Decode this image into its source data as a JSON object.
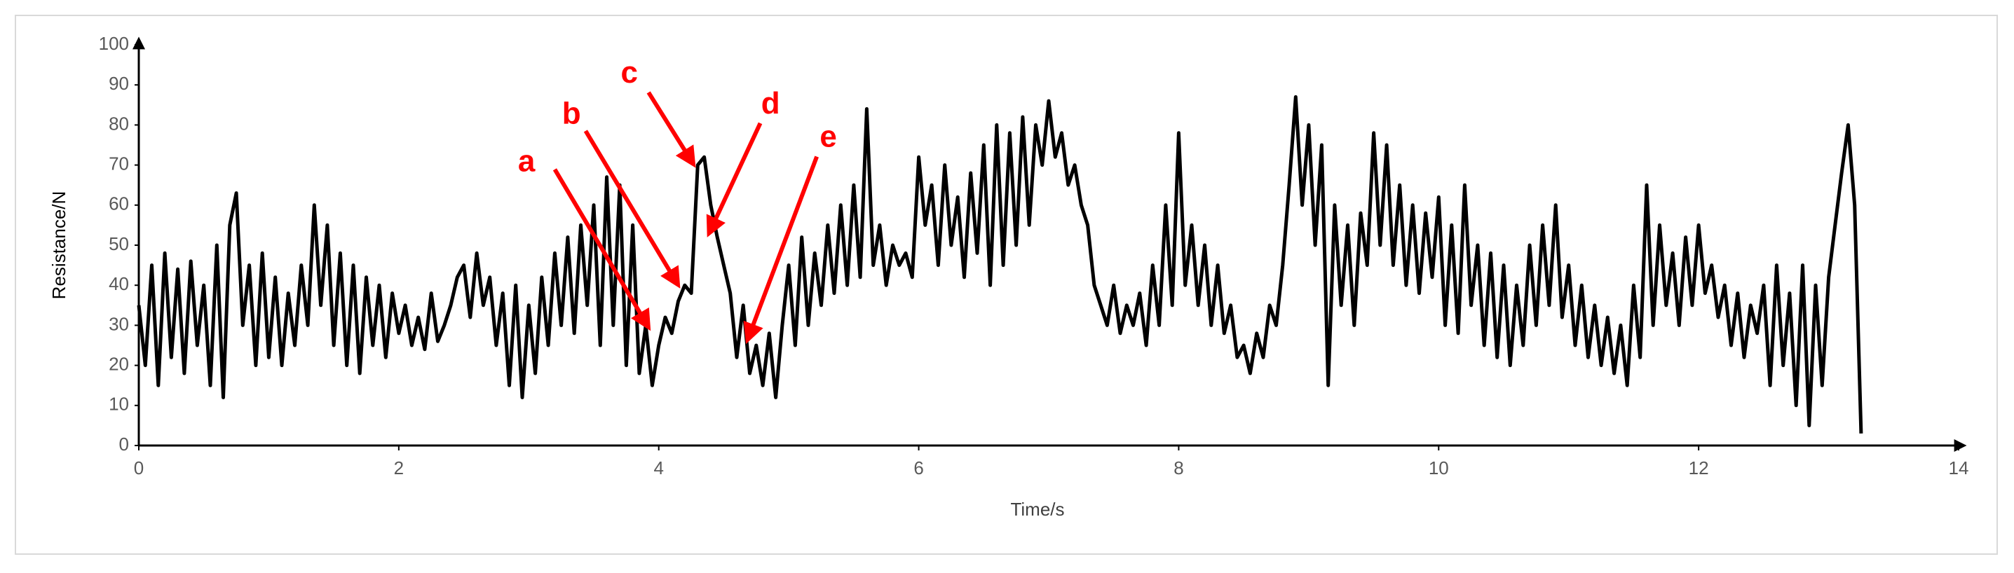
{
  "chart_data": {
    "type": "line",
    "x_label": "Time/s",
    "y_label": "Resistance/N",
    "xlim": [
      0,
      14
    ],
    "xticks": [
      0,
      2,
      4,
      6,
      8,
      10,
      12,
      14
    ],
    "ylim": [
      0,
      100
    ],
    "yticks": [
      0,
      10,
      20,
      30,
      40,
      50,
      60,
      70,
      80,
      90,
      100
    ],
    "grid": false,
    "annotations": [
      {
        "text": "a"
      },
      {
        "text": "b"
      },
      {
        "text": "c"
      },
      {
        "text": "d"
      },
      {
        "text": "e"
      }
    ],
    "annotation_color": "#ff0000",
    "x": [
      0,
      0.05,
      0.1,
      0.15,
      0.2,
      0.25,
      0.3,
      0.35,
      0.4,
      0.45,
      0.5,
      0.55,
      0.6,
      0.65,
      0.7,
      0.75,
      0.8,
      0.85,
      0.9,
      0.95,
      1,
      1.05,
      1.1,
      1.15,
      1.2,
      1.25,
      1.3,
      1.35,
      1.4,
      1.45,
      1.5,
      1.55,
      1.6,
      1.65,
      1.7,
      1.75,
      1.8,
      1.85,
      1.9,
      1.95,
      2,
      2.05,
      2.1,
      2.15,
      2.2,
      2.25,
      2.3,
      2.35,
      2.4,
      2.45,
      2.5,
      2.55,
      2.6,
      2.65,
      2.7,
      2.75,
      2.8,
      2.85,
      2.9,
      2.95,
      3,
      3.05,
      3.1,
      3.15,
      3.2,
      3.25,
      3.3,
      3.35,
      3.4,
      3.45,
      3.5,
      3.55,
      3.6,
      3.65,
      3.7,
      3.75,
      3.8,
      3.85,
      3.9,
      3.95,
      4,
      4.05,
      4.1,
      4.15,
      4.2,
      4.25,
      4.3,
      4.35,
      4.4,
      4.45,
      4.5,
      4.55,
      4.6,
      4.65,
      4.7,
      4.75,
      4.8,
      4.85,
      4.9,
      4.95,
      5,
      5.05,
      5.1,
      5.15,
      5.2,
      5.25,
      5.3,
      5.35,
      5.4,
      5.45,
      5.5,
      5.55,
      5.6,
      5.65,
      5.7,
      5.75,
      5.8,
      5.85,
      5.9,
      5.95,
      6,
      6.05,
      6.1,
      6.15,
      6.2,
      6.25,
      6.3,
      6.35,
      6.4,
      6.45,
      6.5,
      6.55,
      6.6,
      6.65,
      6.7,
      6.75,
      6.8,
      6.85,
      6.9,
      6.95,
      7,
      7.05,
      7.1,
      7.15,
      7.2,
      7.25,
      7.3,
      7.35,
      7.4,
      7.45,
      7.5,
      7.55,
      7.6,
      7.65,
      7.7,
      7.75,
      7.8,
      7.85,
      7.9,
      7.95,
      8,
      8.05,
      8.1,
      8.15,
      8.2,
      8.25,
      8.3,
      8.35,
      8.4,
      8.45,
      8.5,
      8.55,
      8.6,
      8.65,
      8.7,
      8.75,
      8.8,
      8.85,
      8.9,
      8.95,
      9,
      9.05,
      9.1,
      9.15,
      9.2,
      9.25,
      9.3,
      9.35,
      9.4,
      9.45,
      9.5,
      9.55,
      9.6,
      9.65,
      9.7,
      9.75,
      9.8,
      9.85,
      9.9,
      9.95,
      10,
      10.05,
      10.1,
      10.15,
      10.2,
      10.25,
      10.3,
      10.35,
      10.4,
      10.45,
      10.5,
      10.55,
      10.6,
      10.65,
      10.7,
      10.75,
      10.8,
      10.85,
      10.9,
      10.95,
      11,
      11.05,
      11.1,
      11.15,
      11.2,
      11.25,
      11.3,
      11.35,
      11.4,
      11.45,
      11.5,
      11.55,
      11.6,
      11.65,
      11.7,
      11.75,
      11.8,
      11.85,
      11.9,
      11.95,
      12,
      12.05,
      12.1,
      12.15,
      12.2,
      12.25,
      12.3,
      12.35,
      12.4,
      12.45,
      12.5,
      12.55,
      12.6,
      12.65,
      12.7,
      12.75,
      12.8,
      12.85,
      12.9,
      12.95,
      13,
      13.05,
      13.1,
      13.15,
      13.2,
      13.25
    ],
    "series": [
      {
        "color": "#000000",
        "values": [
          35,
          20,
          45,
          15,
          48,
          22,
          44,
          18,
          46,
          25,
          40,
          15,
          50,
          12,
          55,
          63,
          30,
          45,
          20,
          48,
          22,
          42,
          20,
          38,
          25,
          45,
          30,
          60,
          35,
          55,
          25,
          48,
          20,
          45,
          18,
          42,
          25,
          40,
          22,
          38,
          28,
          35,
          25,
          32,
          24,
          38,
          26,
          30,
          35,
          42,
          45,
          32,
          48,
          35,
          42,
          25,
          38,
          15,
          40,
          12,
          35,
          18,
          42,
          25,
          48,
          30,
          52,
          28,
          55,
          35,
          60,
          25,
          67,
          30,
          65,
          20,
          55,
          18,
          30,
          15,
          25,
          32,
          28,
          36,
          40,
          38,
          70,
          72,
          60,
          52,
          45,
          38,
          22,
          35,
          18,
          25,
          15,
          28,
          12,
          30,
          45,
          25,
          52,
          30,
          48,
          35,
          55,
          38,
          60,
          40,
          65,
          42,
          84,
          45,
          55,
          40,
          50,
          45,
          48,
          42,
          72,
          55,
          65,
          45,
          70,
          50,
          62,
          42,
          68,
          48,
          75,
          40,
          80,
          45,
          78,
          50,
          82,
          55,
          80,
          70,
          86,
          72,
          78,
          65,
          70,
          60,
          55,
          40,
          35,
          30,
          40,
          28,
          35,
          30,
          38,
          25,
          45,
          30,
          60,
          35,
          78,
          40,
          55,
          35,
          50,
          30,
          45,
          28,
          35,
          22,
          25,
          18,
          28,
          22,
          35,
          30,
          45,
          65,
          87,
          60,
          80,
          50,
          75,
          15,
          60,
          35,
          55,
          30,
          58,
          45,
          78,
          50,
          75,
          45,
          65,
          40,
          60,
          38,
          58,
          42,
          62,
          30,
          55,
          28,
          65,
          35,
          50,
          25,
          48,
          22,
          45,
          20,
          40,
          25,
          50,
          30,
          55,
          35,
          60,
          32,
          45,
          25,
          40,
          22,
          35,
          20,
          32,
          18,
          30,
          15,
          40,
          22,
          65,
          30,
          55,
          35,
          48,
          30,
          52,
          35,
          55,
          38,
          45,
          32,
          40,
          25,
          38,
          22,
          35,
          28,
          40,
          15,
          45,
          20,
          38,
          10,
          45,
          5,
          40,
          15,
          42,
          55,
          68,
          80,
          60,
          3
        ]
      }
    ]
  }
}
